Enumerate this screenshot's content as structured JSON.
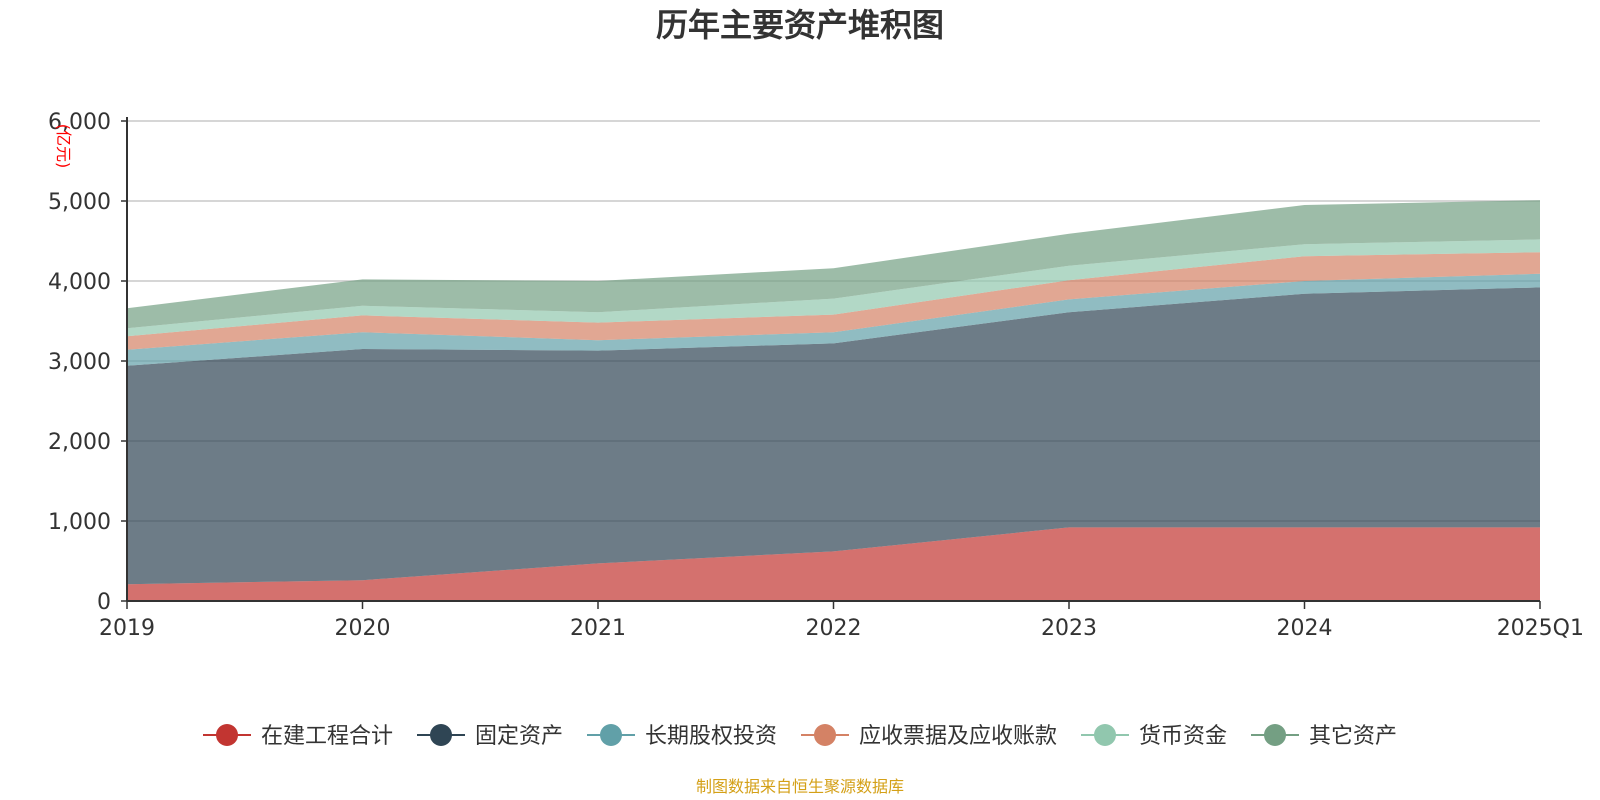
{
  "chart_data": {
    "type": "area",
    "stacked": true,
    "title": "历年主要资产堆积图",
    "ylabel": "(亿元)",
    "xlabel": "",
    "categories": [
      "2019",
      "2020",
      "2021",
      "2022",
      "2023",
      "2024",
      "2025Q1"
    ],
    "ylim": [
      0,
      6000
    ],
    "yticks": [
      0,
      1000,
      2000,
      3000,
      4000,
      5000,
      6000
    ],
    "ytick_labels": [
      "0",
      "1,000",
      "2,000",
      "3,000",
      "4,000",
      "5,000",
      "6,000"
    ],
    "grid": true,
    "legend_position": "bottom",
    "series": [
      {
        "name": "在建工程合计",
        "color": "#c23531",
        "values": [
          210,
          260,
          470,
          620,
          920,
          920,
          920
        ]
      },
      {
        "name": "固定资产",
        "color": "#2f4554",
        "values": [
          2730,
          2890,
          2660,
          2600,
          2690,
          2920,
          3000
        ]
      },
      {
        "name": "长期股权投资",
        "color": "#61a0a8",
        "values": [
          200,
          210,
          130,
          140,
          160,
          160,
          170
        ]
      },
      {
        "name": "应收票据及应收账款",
        "color": "#d48265",
        "values": [
          170,
          210,
          220,
          220,
          240,
          310,
          270
        ]
      },
      {
        "name": "货币资金",
        "color": "#91c7ae",
        "values": [
          100,
          120,
          130,
          200,
          180,
          150,
          160
        ]
      },
      {
        "name": "其它资产",
        "color": "#749f83",
        "values": [
          250,
          330,
          390,
          380,
          400,
          490,
          490
        ]
      }
    ],
    "source_note": "制图数据来自恒生聚源数据库"
  }
}
